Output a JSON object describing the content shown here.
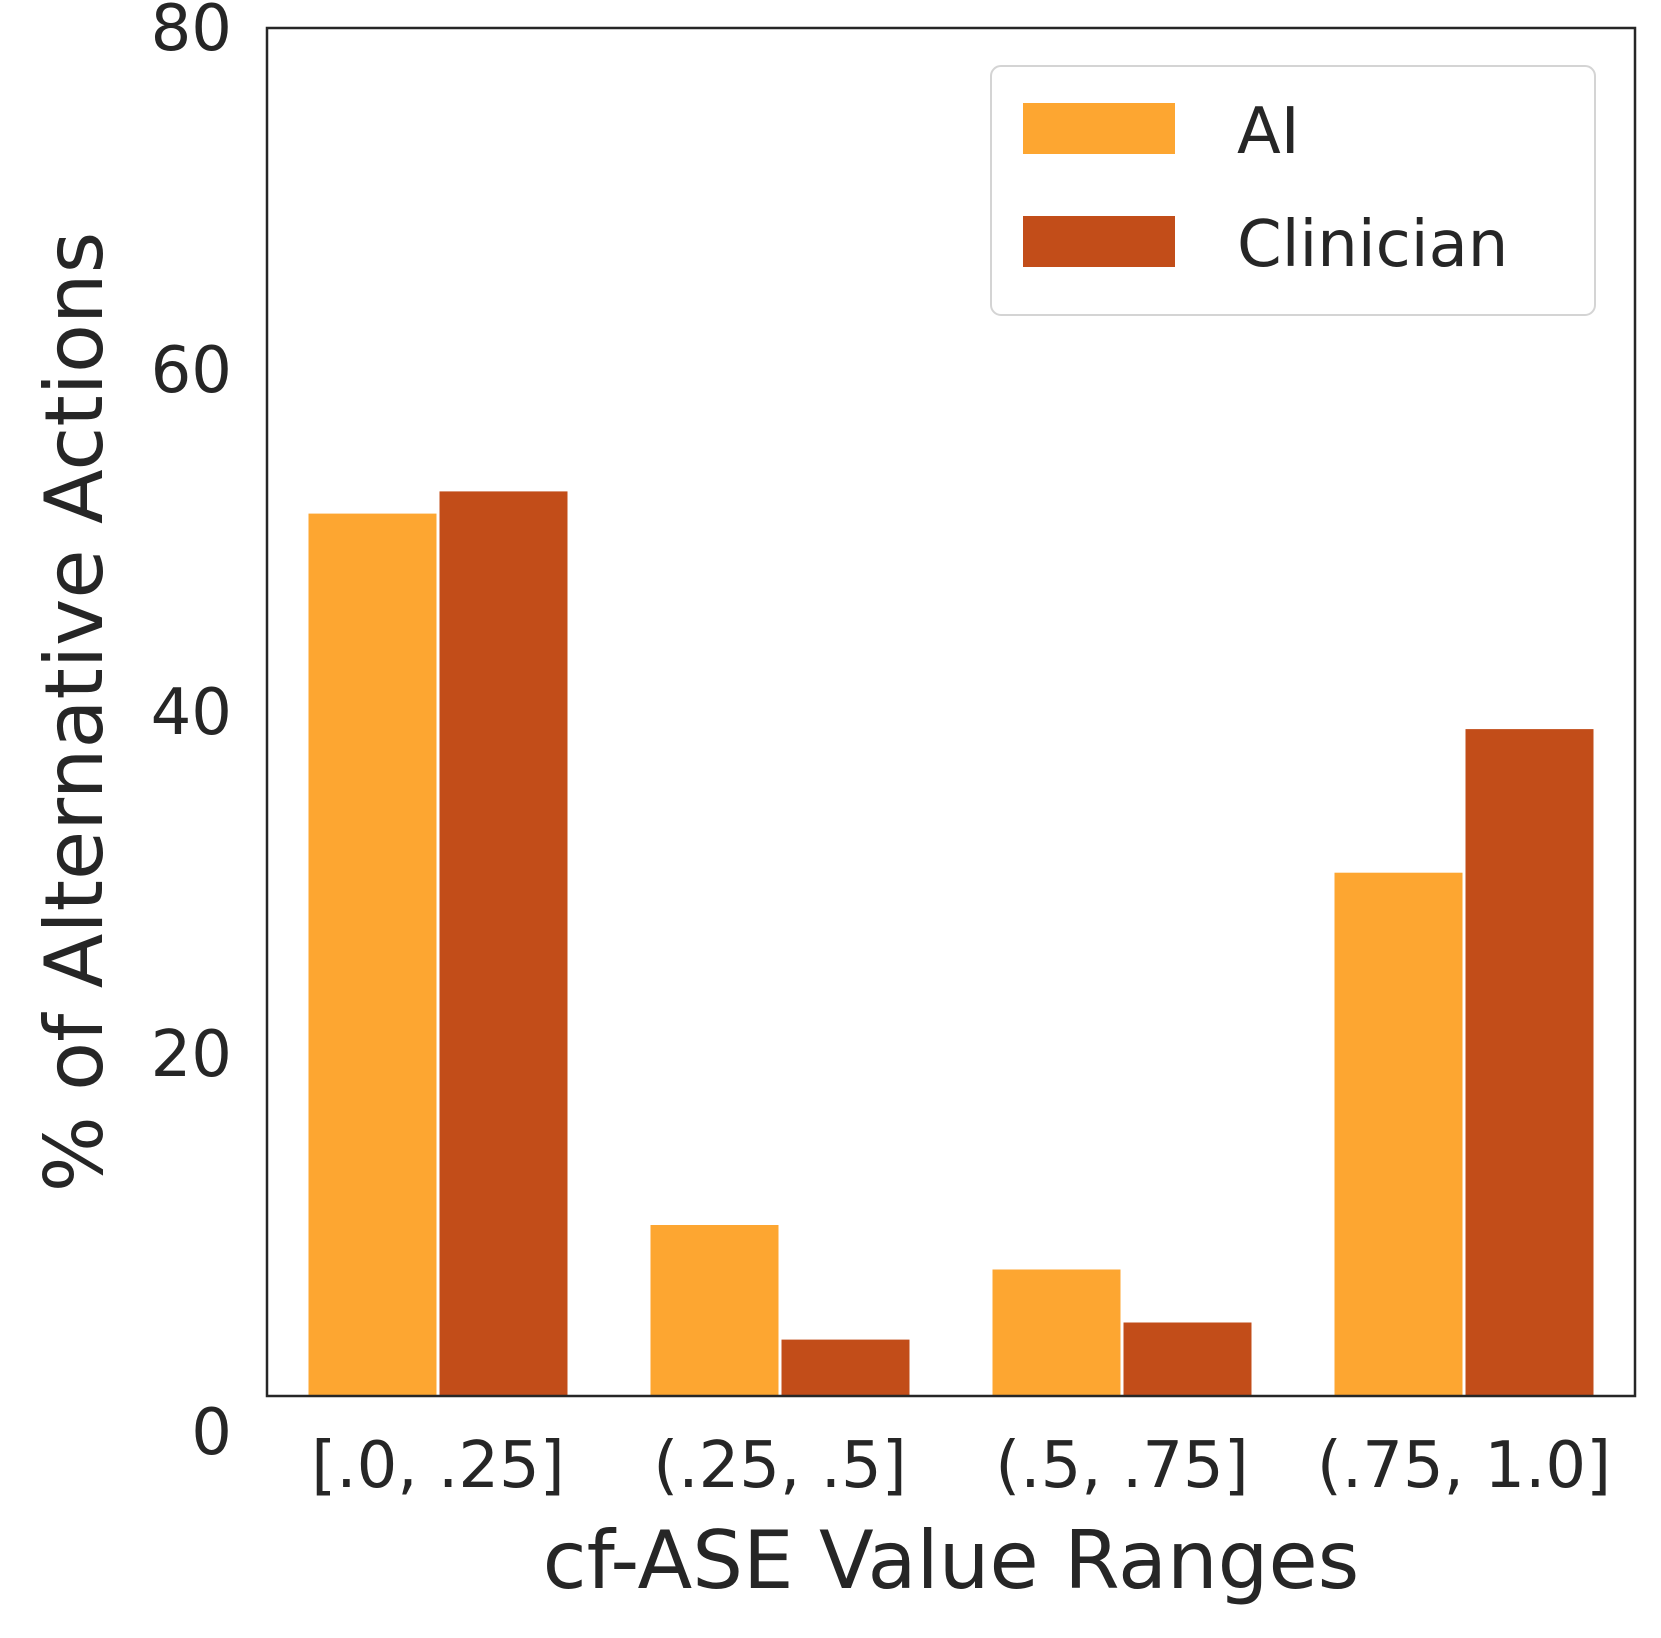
{
  "chart_data": {
    "type": "bar",
    "title": "",
    "xlabel": "cf-ASE Value Ranges",
    "ylabel": "% of Alternative Actions",
    "categories": [
      "[.0, .25]",
      "(.25, .5]",
      "(.5, .75]",
      "(.75, 1.0]"
    ],
    "series": [
      {
        "name": "AI",
        "color": "#fda631",
        "values": [
          51.6,
          10.0,
          7.4,
          30.6
        ]
      },
      {
        "name": "Clinician",
        "color": "#c24d19",
        "values": [
          52.9,
          3.3,
          4.3,
          39.0
        ]
      }
    ],
    "ylim": [
      0,
      80
    ],
    "yticks": [
      "0",
      "20",
      "40",
      "60",
      "80"
    ],
    "grid": false,
    "legend_position": "top-right"
  }
}
